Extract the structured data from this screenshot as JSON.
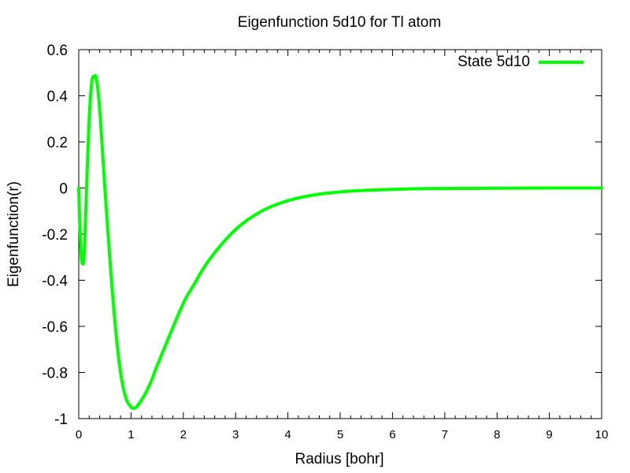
{
  "chart_data": {
    "type": "line",
    "title": "Eigenfunction 5d10 for Tl atom",
    "xlabel": "Radius [bohr]",
    "ylabel": "Eigenfunction(r)",
    "xlim": [
      0,
      10
    ],
    "ylim": [
      -1,
      0.6
    ],
    "xticks": [
      "0",
      "1",
      "2",
      "3",
      "4",
      "5",
      "6",
      "7",
      "8",
      "9",
      "10"
    ],
    "yticks": [
      "0.6",
      "0.4",
      "0.2",
      "0",
      "-0.2",
      "-0.4",
      "-0.6",
      "-0.8",
      "-1"
    ],
    "grid": false,
    "legend_position": "top-right",
    "series": [
      {
        "name": "State 5d10",
        "color": "#00ff00",
        "x": [
          0,
          0.02,
          0.05,
          0.08,
          0.1,
          0.12,
          0.15,
          0.2,
          0.25,
          0.3,
          0.33,
          0.37,
          0.42,
          0.5,
          0.6,
          0.7,
          0.8,
          0.9,
          1.0,
          1.05,
          1.1,
          1.2,
          1.3,
          1.4,
          1.5,
          1.7,
          2.0,
          2.2,
          2.5,
          3.0,
          3.5,
          4.0,
          4.5,
          5.0,
          5.5,
          6.0,
          6.5,
          7.0,
          8.0,
          9.0,
          10.0
        ],
        "y": [
          0,
          -0.15,
          -0.3,
          -0.33,
          -0.3,
          -0.2,
          0.0,
          0.3,
          0.46,
          0.485,
          0.48,
          0.42,
          0.28,
          0.0,
          -0.32,
          -0.6,
          -0.8,
          -0.91,
          -0.95,
          -0.955,
          -0.95,
          -0.92,
          -0.88,
          -0.83,
          -0.77,
          -0.66,
          -0.5,
          -0.42,
          -0.31,
          -0.18,
          -0.1,
          -0.055,
          -0.03,
          -0.017,
          -0.01,
          -0.006,
          -0.003,
          -0.002,
          -0.001,
          0,
          0
        ]
      }
    ]
  }
}
